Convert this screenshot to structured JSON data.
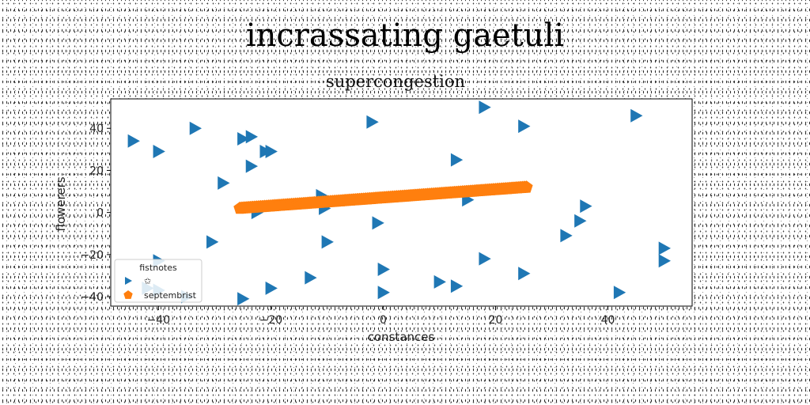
{
  "figure": {
    "title": "incrassating gaetuli"
  },
  "chart_data": {
    "type": "scatter",
    "title": "supercongestion",
    "xlabel": "constances",
    "ylabel": "flowerers",
    "xlim": [
      -48.5,
      55
    ],
    "ylim": [
      -44.5,
      54
    ],
    "xticks": [
      -40,
      -20,
      0,
      20,
      40
    ],
    "yticks": [
      -40,
      -20,
      0,
      20,
      40
    ],
    "grid": false,
    "legend": {
      "title": "fistnotes",
      "placement": "lower-left"
    },
    "series": [
      {
        "name": "✩",
        "marker": "triangle-right",
        "color": "#1f77b4",
        "points": [
          [
            -44.5,
            34
          ],
          [
            -40,
            29
          ],
          [
            -33.5,
            40
          ],
          [
            -28.5,
            14
          ],
          [
            -30.5,
            -14
          ],
          [
            -25,
            35
          ],
          [
            -23.5,
            36
          ],
          [
            -23.5,
            22
          ],
          [
            -21,
            29
          ],
          [
            -20,
            29
          ],
          [
            -20,
            -36
          ],
          [
            -13,
            -31
          ],
          [
            -11,
            8
          ],
          [
            -10.5,
            2
          ],
          [
            -10,
            -14
          ],
          [
            -2,
            43
          ],
          [
            -1,
            -5
          ],
          [
            0,
            -27
          ],
          [
            0,
            -38
          ],
          [
            10,
            -33
          ],
          [
            13,
            25
          ],
          [
            13,
            -35
          ],
          [
            15,
            6
          ],
          [
            18,
            50
          ],
          [
            18,
            -22
          ],
          [
            25,
            41
          ],
          [
            25,
            -29
          ],
          [
            32.5,
            -11
          ],
          [
            35,
            -4
          ],
          [
            36,
            3
          ],
          [
            42,
            -38
          ],
          [
            45,
            46
          ],
          [
            50,
            -17
          ],
          [
            50,
            -23
          ],
          [
            -25,
            -41
          ],
          [
            -40,
            -23
          ],
          [
            -40,
            -37
          ],
          [
            -35,
            -40
          ],
          [
            -22.5,
            0
          ],
          [
            -42,
            -36
          ]
        ]
      },
      {
        "name": "septembrist",
        "marker": "pentagon",
        "color": "#ff7f0e",
        "line": {
          "x_start": -25.5,
          "x_end": 25.5,
          "y_start": 2,
          "y_end": 12
        }
      }
    ]
  }
}
